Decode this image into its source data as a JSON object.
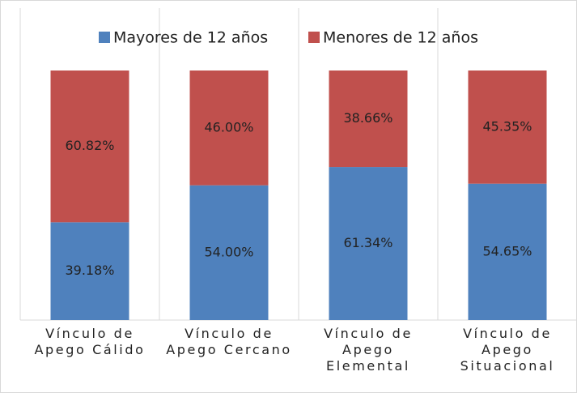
{
  "chart_data": {
    "type": "stacked_bar",
    "categories": [
      "Vínculo de Apego Cálido",
      "Vínculo de Apego Cercano",
      "Vínculo de Apego Elemental",
      "Vínculo de Apego Situacional"
    ],
    "series": [
      {
        "name": "Mayores de 12 años",
        "color": "#4f81bd",
        "values": [
          39.18,
          54.0,
          61.34,
          54.65
        ],
        "value_labels": [
          "39.18%",
          "54.00%",
          "61.34%",
          "54.65%"
        ]
      },
      {
        "name": "Menores de 12 años",
        "color": "#c0504d",
        "values": [
          60.82,
          46.0,
          38.66,
          45.35
        ],
        "value_labels": [
          "60.82%",
          "46.00%",
          "38.66%",
          "45.35%"
        ]
      }
    ],
    "ylim": [
      0,
      100
    ],
    "legend": "top"
  }
}
